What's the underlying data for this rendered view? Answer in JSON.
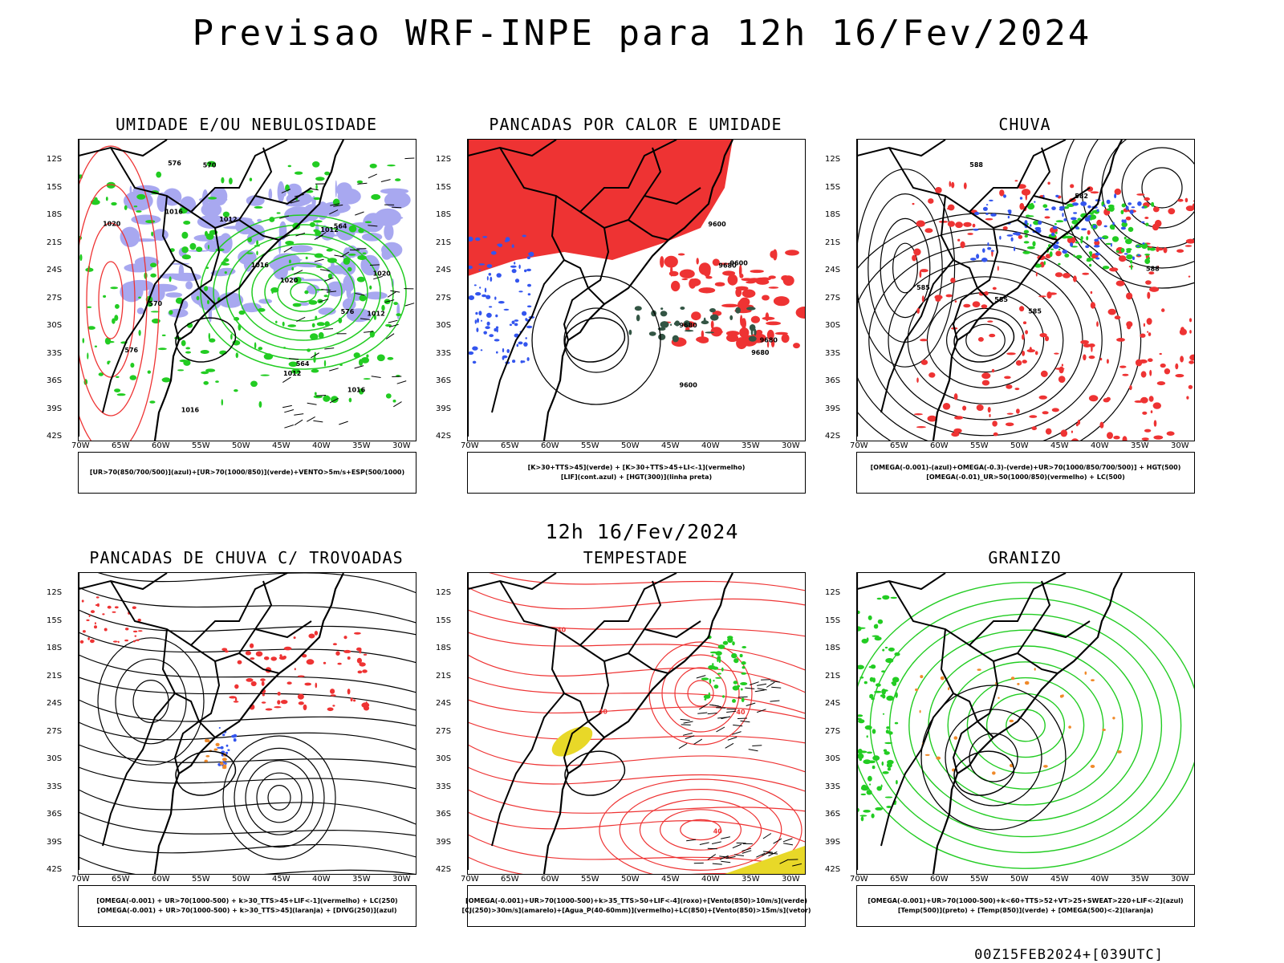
{
  "main_title": "Previsao WRF-INPE  para 12h 16/Fev/2024",
  "subtitle": "12h 16/Fev/2024",
  "footer": "00Z15FEB2024+[039UTC]",
  "axes": {
    "latitudes": [
      "12S",
      "15S",
      "18S",
      "21S",
      "24S",
      "27S",
      "30S",
      "33S",
      "36S",
      "39S",
      "42S"
    ],
    "longitudes": [
      "70W",
      "65W",
      "60W",
      "55W",
      "50W",
      "45W",
      "40W",
      "35W",
      "30W"
    ]
  },
  "colors": {
    "green": "#22cc22",
    "red": "#ee3333",
    "blue": "#3355ee",
    "lavender": "#a8a8f0",
    "yellow": "#e8d828",
    "dark_green": "#335544"
  },
  "panels": [
    {
      "id": "umidade",
      "title": "UMIDADE E/OU NEBULOSIDADE",
      "legend": [
        "[UR>70(850/700/500)](azul)+[UR>70(1000/850)](verde)+VENTO>5m/s+ESP(500/1000)"
      ],
      "contour_labels": [
        "1012",
        "1012",
        "1012",
        "1012",
        "1016",
        "1016",
        "1016",
        "1016",
        "1020",
        "1020",
        "1020",
        "576",
        "576",
        "576",
        "570",
        "570",
        "564",
        "564"
      ]
    },
    {
      "id": "pancadas-calor",
      "title": "PANCADAS POR CALOR E UMIDADE",
      "legend": [
        "[K>30+TTS>45](verde) + [K>30+TTS>45+LI<-1](vermelho)",
        "[LIF](cont.azul) + [HGT(300)](linha preta)"
      ],
      "contour_labels": [
        "9680",
        "9680",
        "9680",
        "9680",
        "9600",
        "9600",
        "9600"
      ]
    },
    {
      "id": "chuva",
      "title": "CHUVA",
      "legend": [
        "[OMEGA(-0.001)-(azul)+OMEGA(-0.3)-(verde)+UR>70(1000/850/700/500)] + HGT(500)",
        "[OMEGA(-0.01)_UR>50(1000/850)(vermelho) + LC(500)"
      ],
      "contour_labels": [
        "588",
        "582",
        "588",
        "585",
        "585",
        "585"
      ]
    },
    {
      "id": "pancadas-trovoadas",
      "title": "PANCADAS DE CHUVA C/ TROVOADAS",
      "legend": [
        "[OMEGA(-0.001) + UR>70(1000-500) + k>30_TTS>45+LIF<-1](vermelho) + LC(250)",
        "[OMEGA(-0.001) + UR>70(1000-500) + k>30_TTS>45](laranja) + [DIVG(250)](azul)"
      ],
      "contour_labels": []
    },
    {
      "id": "tempestade",
      "title": "TEMPESTADE",
      "legend": [
        "[OMEGA(-0.001)+UR>70(1000-500)+k>35_TTS>50+LIF<-4](roxo)+[Vento(850)>10m/s](verde)",
        "[CJ(250)>30m/s](amarelo)+[Agua_P(40-60mm)](vermelho)+LC(850)+[Vento(850)>15m/s](vetor)"
      ],
      "contour_labels": [
        "40",
        "40",
        "40",
        "40"
      ]
    },
    {
      "id": "granizo",
      "title": "GRANIZO",
      "legend": [
        "[OMEGA(-0.001)+UR>70(1000-500)+k<60+TTS>52+VT>25+SWEAT>220+LIF<-2](azul)",
        "[Temp(500)](preto) + [Temp(850)](verde) + [OMEGA(500)<-2](laranja)"
      ],
      "contour_labels": []
    }
  ]
}
